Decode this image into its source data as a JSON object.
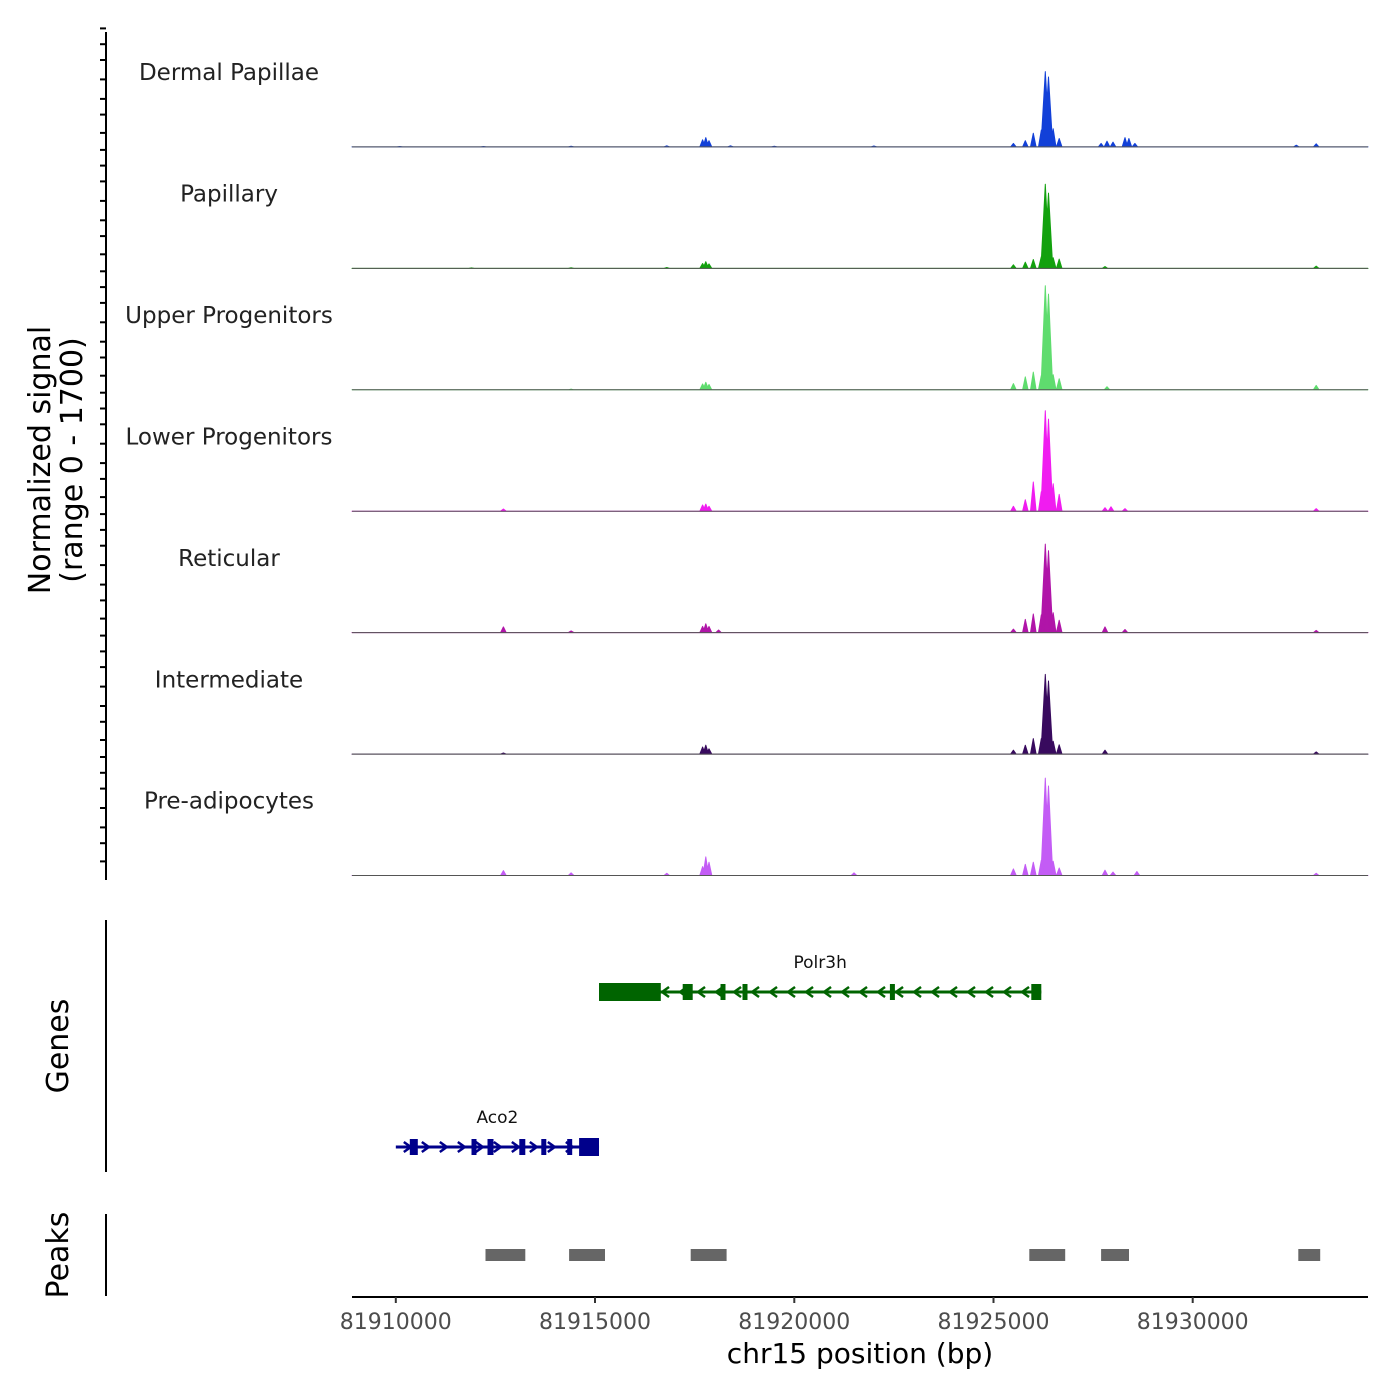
{
  "chart_data": {
    "type": "area",
    "title": "",
    "xlabel": "chr15 position (bp)",
    "ylabel_lines": [
      "Normalized signal",
      "(range 0 - 1700)"
    ],
    "ylim": [
      0,
      1700
    ],
    "xlim": [
      81908900,
      81934400
    ],
    "x_ticks": [
      81910000,
      81915000,
      81920000,
      81925000,
      81930000
    ],
    "x_tick_labels": [
      "81910000",
      "81915000",
      "81920000",
      "81925000",
      "81930000"
    ],
    "panel_labels": {
      "genes": "Genes",
      "peaks": "Peaks"
    },
    "series": [
      {
        "name": "Dermal Papillae",
        "color": "#1240d8",
        "x": [
          81910100,
          81912200,
          81914400,
          81916800,
          81917700,
          81917780,
          81917860,
          81918400,
          81919500,
          81922000,
          81925500,
          81925800,
          81926000,
          81926200,
          81926300,
          81926380,
          81926500,
          81926650,
          81927700,
          81927850,
          81928000,
          81928300,
          81928400,
          81928550,
          81932600,
          81933100
        ],
        "y": [
          10,
          10,
          15,
          25,
          160,
          210,
          140,
          25,
          15,
          20,
          80,
          140,
          310,
          380,
          1700,
          1580,
          410,
          190,
          80,
          130,
          110,
          210,
          190,
          80,
          40,
          70
        ]
      },
      {
        "name": "Papillary",
        "color": "#13a10e",
        "x": [
          81911900,
          81914400,
          81916800,
          81917700,
          81917780,
          81917860,
          81925500,
          81925800,
          81926000,
          81926200,
          81926300,
          81926380,
          81926500,
          81926650,
          81927800,
          81933100
        ],
        "y": [
          10,
          15,
          20,
          110,
          150,
          100,
          80,
          140,
          200,
          260,
          1900,
          1700,
          240,
          210,
          40,
          50
        ]
      },
      {
        "name": "Upper Progenitors",
        "color": "#5fdc6e",
        "x": [
          81914400,
          81917700,
          81917780,
          81917860,
          81925500,
          81925800,
          81926000,
          81926200,
          81926300,
          81926380,
          81926500,
          81926650,
          81927850,
          81933100
        ],
        "y": [
          15,
          130,
          170,
          120,
          140,
          290,
          400,
          320,
          2350,
          2160,
          340,
          250,
          70,
          100
        ]
      },
      {
        "name": "Lower Progenitors",
        "color": "#f01cf0",
        "x": [
          81912700,
          81917700,
          81917780,
          81917860,
          81925500,
          81925800,
          81926000,
          81926200,
          81926300,
          81926380,
          81926500,
          81926650,
          81927800,
          81927950,
          81928300,
          81933100
        ],
        "y": [
          50,
          140,
          160,
          110,
          110,
          260,
          660,
          440,
          2270,
          2080,
          620,
          380,
          80,
          100,
          60,
          60
        ]
      },
      {
        "name": "Reticular",
        "color": "#b015a8",
        "x": [
          81912700,
          81914400,
          81917700,
          81917780,
          81917860,
          81918100,
          81925500,
          81925800,
          81926000,
          81926200,
          81926300,
          81926380,
          81926500,
          81926650,
          81927800,
          81928300,
          81933100
        ],
        "y": [
          130,
          40,
          140,
          200,
          140,
          60,
          80,
          300,
          420,
          400,
          2000,
          1850,
          450,
          280,
          130,
          70,
          50
        ]
      },
      {
        "name": "Intermediate",
        "color": "#380a5e",
        "x": [
          81912700,
          81917700,
          81917780,
          81917860,
          81925500,
          81925800,
          81926000,
          81926200,
          81926300,
          81926380,
          81926500,
          81926650,
          81927800,
          81933100
        ],
        "y": [
          25,
          160,
          200,
          120,
          90,
          200,
          350,
          350,
          1800,
          1650,
          290,
          210,
          90,
          50
        ]
      },
      {
        "name": "Pre-adipocytes",
        "color": "#c35cf5",
        "x": [
          81912700,
          81914400,
          81916800,
          81917700,
          81917780,
          81917860,
          81921500,
          81925500,
          81925800,
          81926000,
          81926200,
          81926300,
          81926380,
          81926500,
          81926650,
          81927800,
          81928000,
          81928600,
          81933100
        ],
        "y": [
          110,
          60,
          50,
          200,
          420,
          300,
          60,
          150,
          250,
          300,
          340,
          2200,
          2020,
          320,
          170,
          120,
          80,
          90,
          50
        ]
      }
    ],
    "genes": [
      {
        "name": "Polr3h",
        "strand": "-",
        "color": "#006400",
        "start": 81915100,
        "end": 81926200,
        "exons": [
          [
            81915100,
            81916650
          ],
          [
            81917200,
            81917450
          ],
          [
            81918150,
            81918230
          ],
          [
            81918700,
            81918790
          ],
          [
            81922400,
            81922480
          ],
          [
            81925950,
            81926200
          ]
        ]
      },
      {
        "name": "Aco2",
        "strand": "+",
        "color": "#00008b",
        "start": 81910000,
        "end": 81915100,
        "exons": [
          [
            81910350,
            81910550
          ],
          [
            81911900,
            81912020
          ],
          [
            81912300,
            81912450
          ],
          [
            81913100,
            81913250
          ],
          [
            81913650,
            81913770
          ],
          [
            81914300,
            81914400
          ],
          [
            81914600,
            81915100
          ]
        ]
      }
    ],
    "peaks": [
      [
        81912250,
        81913250
      ],
      [
        81914350,
        81915250
      ],
      [
        81917400,
        81918300
      ],
      [
        81925900,
        81926800
      ],
      [
        81927700,
        81928400
      ],
      [
        81932650,
        81933200
      ]
    ]
  }
}
